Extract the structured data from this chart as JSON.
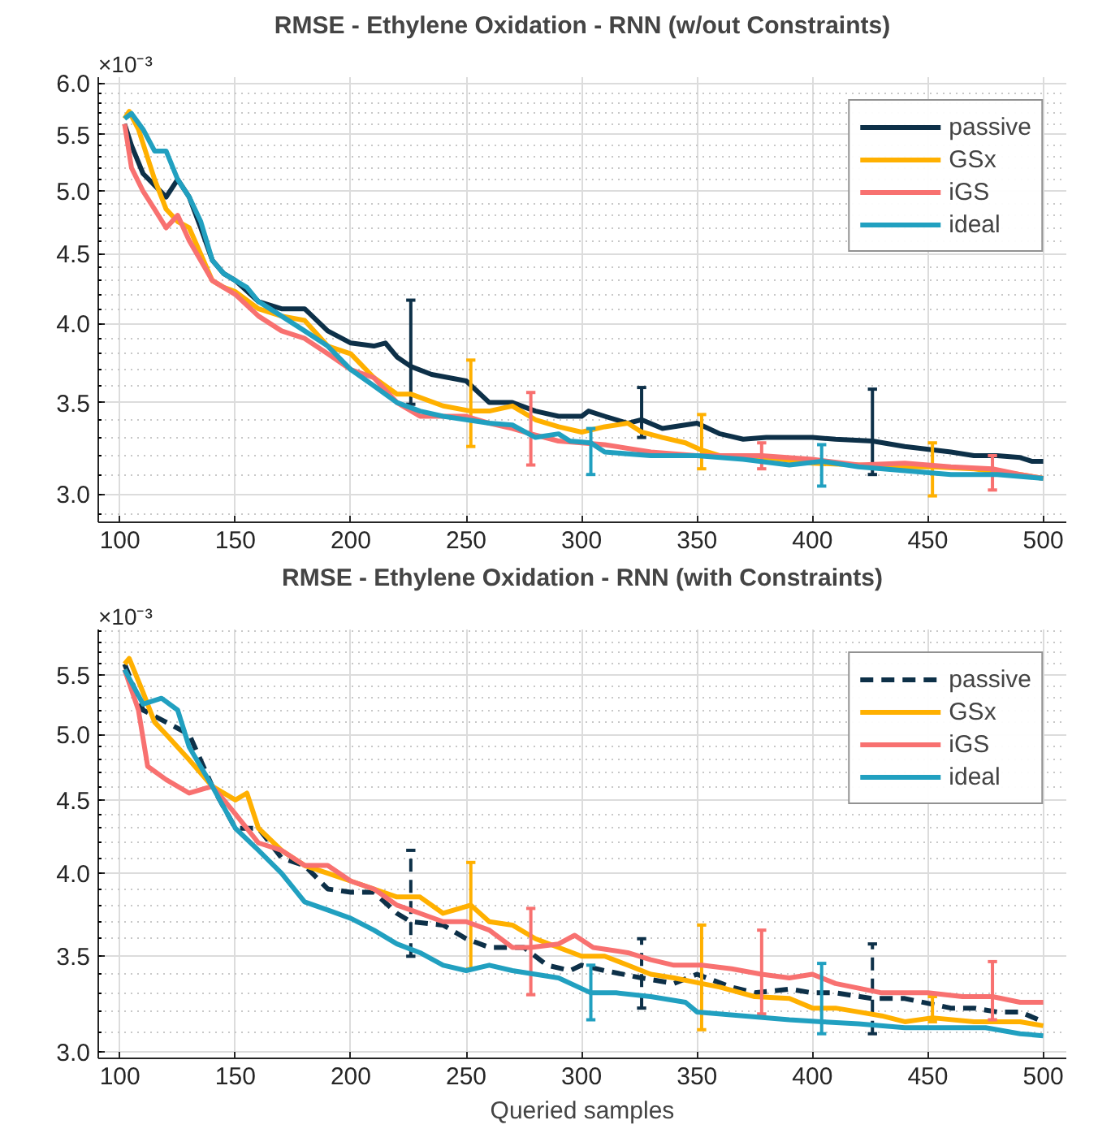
{
  "chart_data": [
    {
      "type": "line",
      "title": "RMSE - Ethylene Oxidation - RNN (w/out Constraints)",
      "annotations": [
        "×10⁻³"
      ],
      "log": true,
      "grid": true,
      "legend": "top right",
      "xlim": [
        90.6,
        510
      ],
      "xticks": [
        100,
        150,
        200,
        250,
        300,
        350,
        400,
        450,
        500
      ],
      "ylim": [
        2.86,
        6.06
      ],
      "yticks": [
        {
          "value": 3.0,
          "label": "3.0"
        },
        {
          "value": 3.5,
          "label": "3.5"
        },
        {
          "value": 4.0,
          "label": "4.0"
        },
        {
          "value": 4.5,
          "label": "4.5"
        },
        {
          "value": 5.0,
          "label": "5.0"
        },
        {
          "value": 5.5,
          "label": "5.5"
        },
        {
          "value": 6.0,
          "label": "6.0"
        }
      ],
      "series": [
        {
          "name": "passive",
          "color": "#0d3048",
          "line_style": "solid",
          "x": [
            102,
            105,
            110,
            115,
            120,
            125,
            130,
            135,
            140,
            145,
            150,
            160,
            170,
            180,
            190,
            200,
            210,
            215,
            220,
            226,
            235,
            250,
            260,
            270,
            280,
            290,
            300,
            303,
            310,
            320,
            326,
            335,
            350,
            360,
            370,
            380,
            400,
            410,
            426,
            440,
            460,
            470,
            480,
            490,
            495,
            500
          ],
          "values": [
            5.6,
            5.4,
            5.15,
            5.05,
            4.95,
            5.1,
            4.95,
            4.7,
            4.45,
            4.35,
            4.3,
            4.15,
            4.1,
            4.1,
            3.95,
            3.87,
            3.85,
            3.87,
            3.78,
            3.72,
            3.67,
            3.63,
            3.5,
            3.5,
            3.45,
            3.42,
            3.42,
            3.45,
            3.42,
            3.38,
            3.4,
            3.35,
            3.38,
            3.32,
            3.29,
            3.3,
            3.3,
            3.29,
            3.28,
            3.25,
            3.22,
            3.2,
            3.2,
            3.19,
            3.17,
            3.17
          ],
          "errors": [
            null,
            null,
            null,
            null,
            null,
            null,
            null,
            null,
            null,
            null,
            null,
            null,
            null,
            null,
            null,
            null,
            null,
            null,
            null,
            [
              3.49,
              4.16
            ],
            null,
            null,
            null,
            null,
            null,
            null,
            null,
            null,
            null,
            null,
            [
              3.3,
              3.59
            ],
            null,
            null,
            null,
            null,
            null,
            null,
            null,
            [
              3.1,
              3.58
            ],
            null,
            null,
            null,
            null,
            null,
            null,
            null
          ]
        },
        {
          "name": "GSx",
          "color": "#ffb000",
          "line_style": "solid",
          "x": [
            102,
            104,
            108,
            115,
            120,
            125,
            130,
            140,
            145,
            150,
            160,
            170,
            180,
            190,
            200,
            210,
            220,
            226,
            240,
            252,
            260,
            270,
            280,
            290,
            300,
            310,
            320,
            326,
            335,
            345,
            352,
            360,
            380,
            400,
            420,
            440,
            452,
            470,
            490,
            500
          ],
          "values": [
            5.65,
            5.72,
            5.55,
            5.1,
            4.85,
            4.75,
            4.7,
            4.3,
            4.25,
            4.22,
            4.1,
            4.05,
            4.02,
            3.85,
            3.8,
            3.65,
            3.55,
            3.55,
            3.48,
            3.45,
            3.45,
            3.48,
            3.4,
            3.36,
            3.33,
            3.36,
            3.38,
            3.33,
            3.3,
            3.27,
            3.23,
            3.2,
            3.19,
            3.16,
            3.15,
            3.14,
            3.14,
            3.13,
            3.1,
            3.08
          ],
          "errors": [
            null,
            null,
            null,
            null,
            null,
            null,
            null,
            null,
            null,
            null,
            null,
            null,
            null,
            null,
            null,
            null,
            null,
            null,
            null,
            [
              3.25,
              3.76
            ],
            null,
            null,
            null,
            null,
            null,
            null,
            null,
            null,
            null,
            null,
            [
              3.13,
              3.43
            ],
            null,
            null,
            null,
            null,
            null,
            [
              2.99,
              3.27
            ],
            null,
            null,
            null
          ]
        },
        {
          "name": "iGS",
          "color": "#f87170",
          "line_style": "solid",
          "x": [
            102,
            105,
            110,
            115,
            120,
            125,
            130,
            140,
            150,
            160,
            170,
            180,
            190,
            200,
            210,
            220,
            230,
            240,
            250,
            260,
            270,
            278,
            290,
            300,
            310,
            330,
            350,
            378,
            400,
            420,
            440,
            460,
            478,
            490,
            500
          ],
          "values": [
            5.6,
            5.2,
            5.0,
            4.85,
            4.7,
            4.8,
            4.6,
            4.3,
            4.2,
            4.05,
            3.95,
            3.9,
            3.8,
            3.7,
            3.65,
            3.5,
            3.42,
            3.42,
            3.42,
            3.38,
            3.35,
            3.32,
            3.28,
            3.27,
            3.26,
            3.22,
            3.2,
            3.2,
            3.18,
            3.15,
            3.16,
            3.14,
            3.13,
            3.1,
            3.08
          ],
          "errors": [
            null,
            null,
            null,
            null,
            null,
            null,
            null,
            null,
            null,
            null,
            null,
            null,
            null,
            null,
            null,
            null,
            null,
            null,
            null,
            null,
            null,
            [
              3.15,
              3.56
            ],
            null,
            null,
            null,
            null,
            null,
            [
              3.13,
              3.27
            ],
            null,
            null,
            null,
            null,
            [
              3.02,
              3.2
            ],
            null,
            null
          ]
        },
        {
          "name": "ideal",
          "color": "#21a0c0",
          "line_style": "solid",
          "x": [
            102,
            105,
            110,
            115,
            120,
            125,
            130,
            135,
            140,
            145,
            150,
            155,
            160,
            165,
            170,
            180,
            190,
            200,
            210,
            220,
            230,
            240,
            250,
            260,
            270,
            280,
            290,
            295,
            304,
            310,
            330,
            350,
            370,
            390,
            404,
            420,
            440,
            460,
            480,
            500
          ],
          "values": [
            5.65,
            5.7,
            5.55,
            5.35,
            5.35,
            5.1,
            4.95,
            4.75,
            4.45,
            4.35,
            4.3,
            4.25,
            4.15,
            4.1,
            4.05,
            3.95,
            3.85,
            3.7,
            3.6,
            3.5,
            3.45,
            3.42,
            3.4,
            3.38,
            3.37,
            3.3,
            3.32,
            3.28,
            3.27,
            3.22,
            3.2,
            3.2,
            3.18,
            3.15,
            3.17,
            3.14,
            3.12,
            3.1,
            3.1,
            3.08
          ],
          "errors": [
            null,
            null,
            null,
            null,
            null,
            null,
            null,
            null,
            null,
            null,
            null,
            null,
            null,
            null,
            null,
            null,
            null,
            null,
            null,
            null,
            null,
            null,
            null,
            null,
            null,
            null,
            null,
            null,
            [
              3.1,
              3.35
            ],
            null,
            null,
            null,
            null,
            null,
            [
              3.04,
              3.26
            ],
            null,
            null,
            null,
            null,
            null
          ]
        }
      ]
    },
    {
      "type": "line",
      "title": "RMSE - Ethylene Oxidation - RNN (with Constraints)",
      "xlabel": "Queried samples",
      "annotations": [
        "×10⁻³"
      ],
      "log": true,
      "grid": true,
      "legend": "top right",
      "xlim": [
        90.6,
        510
      ],
      "xticks": [
        100,
        150,
        200,
        250,
        300,
        350,
        400,
        450,
        500
      ],
      "ylim": [
        2.97,
        5.92
      ],
      "yticks": [
        {
          "value": 3.0,
          "label": "3.0"
        },
        {
          "value": 3.5,
          "label": "3.5"
        },
        {
          "value": 4.0,
          "label": "4.0"
        },
        {
          "value": 4.5,
          "label": "4.5"
        },
        {
          "value": 5.0,
          "label": "5.0"
        },
        {
          "value": 5.5,
          "label": "5.5"
        }
      ],
      "series": [
        {
          "name": "passive",
          "color": "#0d3048",
          "line_style": "dashed",
          "x": [
            102,
            110,
            120,
            130,
            140,
            150,
            160,
            170,
            180,
            190,
            200,
            210,
            220,
            226,
            240,
            250,
            260,
            275,
            285,
            295,
            300,
            310,
            326,
            340,
            350,
            365,
            375,
            390,
            400,
            410,
            426,
            440,
            460,
            470,
            480,
            490,
            500
          ],
          "values": [
            5.6,
            5.2,
            5.1,
            5.0,
            4.6,
            4.3,
            4.3,
            4.1,
            4.05,
            3.9,
            3.88,
            3.88,
            3.75,
            3.7,
            3.68,
            3.6,
            3.55,
            3.55,
            3.45,
            3.42,
            3.45,
            3.42,
            3.38,
            3.35,
            3.4,
            3.33,
            3.3,
            3.32,
            3.3,
            3.3,
            3.27,
            3.27,
            3.22,
            3.22,
            3.2,
            3.2,
            3.15
          ],
          "errors": [
            null,
            null,
            null,
            null,
            null,
            null,
            null,
            null,
            null,
            null,
            null,
            null,
            null,
            [
              3.5,
              4.15
            ],
            null,
            null,
            null,
            null,
            null,
            null,
            null,
            null,
            [
              3.22,
              3.6
            ],
            null,
            null,
            null,
            null,
            null,
            null,
            null,
            [
              3.09,
              3.57
            ],
            null,
            null,
            null,
            null,
            null,
            null
          ]
        },
        {
          "name": "GSx",
          "color": "#ffb000",
          "line_style": "solid",
          "x": [
            102,
            104,
            110,
            115,
            120,
            130,
            140,
            150,
            155,
            160,
            170,
            180,
            190,
            200,
            210,
            220,
            230,
            240,
            252,
            260,
            270,
            280,
            290,
            300,
            310,
            320,
            330,
            340,
            352,
            360,
            375,
            390,
            400,
            410,
            420,
            430,
            440,
            452,
            470,
            490,
            500
          ],
          "values": [
            5.6,
            5.65,
            5.35,
            5.1,
            5.0,
            4.8,
            4.6,
            4.5,
            4.55,
            4.3,
            4.15,
            4.05,
            4.0,
            3.95,
            3.9,
            3.85,
            3.85,
            3.75,
            3.8,
            3.7,
            3.68,
            3.6,
            3.55,
            3.5,
            3.5,
            3.45,
            3.4,
            3.38,
            3.35,
            3.33,
            3.28,
            3.27,
            3.22,
            3.22,
            3.2,
            3.18,
            3.15,
            3.17,
            3.15,
            3.15,
            3.13
          ],
          "errors": [
            null,
            null,
            null,
            null,
            null,
            null,
            null,
            null,
            null,
            null,
            null,
            null,
            null,
            null,
            null,
            null,
            null,
            null,
            [
              3.43,
              4.07
            ],
            null,
            null,
            null,
            null,
            null,
            null,
            null,
            null,
            null,
            [
              3.11,
              3.68
            ],
            null,
            null,
            null,
            null,
            null,
            null,
            null,
            null,
            [
              3.15,
              3.28
            ],
            null,
            null,
            null
          ]
        },
        {
          "name": "iGS",
          "color": "#f87170",
          "line_style": "solid",
          "x": [
            102,
            108,
            112,
            120,
            130,
            140,
            145,
            150,
            160,
            170,
            180,
            190,
            200,
            210,
            220,
            230,
            240,
            250,
            260,
            270,
            278,
            290,
            297,
            305,
            320,
            330,
            340,
            352,
            365,
            378,
            390,
            400,
            410,
            430,
            450,
            465,
            478,
            490,
            500
          ],
          "values": [
            5.55,
            5.2,
            4.75,
            4.65,
            4.55,
            4.6,
            4.5,
            4.4,
            4.2,
            4.15,
            4.05,
            4.05,
            3.95,
            3.9,
            3.8,
            3.75,
            3.7,
            3.7,
            3.65,
            3.55,
            3.55,
            3.57,
            3.62,
            3.55,
            3.52,
            3.48,
            3.45,
            3.45,
            3.43,
            3.4,
            3.38,
            3.4,
            3.35,
            3.3,
            3.3,
            3.28,
            3.28,
            3.25,
            3.25
          ],
          "errors": [
            null,
            null,
            null,
            null,
            null,
            null,
            null,
            null,
            null,
            null,
            null,
            null,
            null,
            null,
            null,
            null,
            null,
            null,
            null,
            null,
            [
              3.29,
              3.78
            ],
            null,
            null,
            null,
            null,
            null,
            null,
            null,
            null,
            [
              3.19,
              3.65
            ],
            null,
            null,
            null,
            null,
            null,
            null,
            [
              3.16,
              3.47
            ],
            null,
            null
          ]
        },
        {
          "name": "ideal",
          "color": "#21a0c0",
          "line_style": "solid",
          "x": [
            102,
            110,
            118,
            125,
            130,
            140,
            150,
            160,
            170,
            180,
            190,
            200,
            210,
            220,
            230,
            240,
            250,
            260,
            270,
            280,
            290,
            304,
            315,
            330,
            345,
            350,
            370,
            390,
            404,
            420,
            440,
            460,
            475,
            490,
            500
          ],
          "values": [
            5.55,
            5.25,
            5.3,
            5.2,
            4.9,
            4.6,
            4.3,
            4.15,
            4.0,
            3.82,
            3.77,
            3.72,
            3.65,
            3.57,
            3.52,
            3.45,
            3.42,
            3.45,
            3.42,
            3.4,
            3.38,
            3.3,
            3.3,
            3.28,
            3.25,
            3.2,
            3.18,
            3.16,
            3.15,
            3.14,
            3.12,
            3.12,
            3.12,
            3.09,
            3.08
          ],
          "errors": [
            null,
            null,
            null,
            null,
            null,
            null,
            null,
            null,
            null,
            null,
            null,
            null,
            null,
            null,
            null,
            null,
            null,
            null,
            null,
            null,
            null,
            [
              3.16,
              3.45
            ],
            null,
            null,
            null,
            null,
            null,
            null,
            [
              3.09,
              3.46
            ],
            null,
            null,
            null,
            null,
            null,
            null
          ]
        }
      ]
    }
  ]
}
